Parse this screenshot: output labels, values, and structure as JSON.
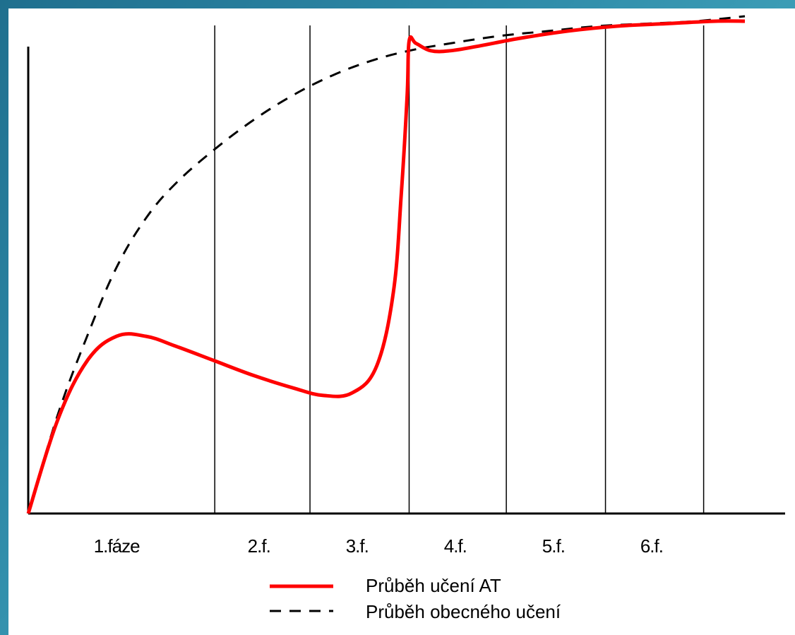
{
  "colors": {
    "at_curve": "#ff0000",
    "general_curve": "#000000",
    "axis": "#000000",
    "panel_bg": "#ffffff",
    "frame_bg": "#2e8aa8"
  },
  "chart_data": {
    "type": "line",
    "title": "",
    "xlabel": "",
    "ylabel": "",
    "x_ticks_shown": false,
    "y_ticks_shown": false,
    "grid": "vertical phase dividers",
    "legend_placement": "bottom-center",
    "xlim": [
      0,
      7.5
    ],
    "ylim": [
      0,
      1
    ],
    "phase_boundaries": [
      1.9,
      2.87,
      3.88,
      4.87,
      5.88,
      6.88
    ],
    "phases": [
      {
        "label": "1.fáze",
        "center": 0.9
      },
      {
        "label": "2.f.",
        "center": 2.35
      },
      {
        "label": "3.f.",
        "center": 3.35
      },
      {
        "label": "4.f.",
        "center": 4.35
      },
      {
        "label": "5.f.",
        "center": 5.35
      },
      {
        "label": "6.f.",
        "center": 6.35
      }
    ],
    "series": [
      {
        "name": "Průběh učení AT",
        "style": "solid",
        "x": [
          0,
          0.3,
          0.6,
          0.9,
          1.2,
          1.5,
          1.9,
          2.3,
          2.7,
          3.0,
          3.3,
          3.55,
          3.72,
          3.8,
          3.86,
          3.88,
          3.95,
          4.1,
          4.3,
          4.6,
          5.0,
          5.5,
          6.0,
          6.5,
          7.0,
          7.3
        ],
        "values": [
          0.0,
          0.19,
          0.31,
          0.36,
          0.36,
          0.34,
          0.31,
          0.28,
          0.255,
          0.24,
          0.245,
          0.3,
          0.45,
          0.65,
          0.85,
          0.96,
          0.955,
          0.94,
          0.94,
          0.95,
          0.965,
          0.98,
          0.99,
          0.995,
          1.0,
          1.0
        ]
      },
      {
        "name": "Průběh obecného učení",
        "style": "dashed",
        "x": [
          0,
          0.3,
          0.6,
          0.9,
          1.2,
          1.5,
          1.9,
          2.3,
          2.7,
          3.1,
          3.5,
          3.88,
          4.3,
          4.8,
          5.3,
          5.8,
          6.3,
          6.8,
          7.3
        ],
        "values": [
          0.0,
          0.2,
          0.36,
          0.5,
          0.6,
          0.67,
          0.74,
          0.8,
          0.85,
          0.89,
          0.92,
          0.94,
          0.955,
          0.97,
          0.98,
          0.99,
          0.995,
          1.0,
          1.01
        ]
      }
    ]
  }
}
